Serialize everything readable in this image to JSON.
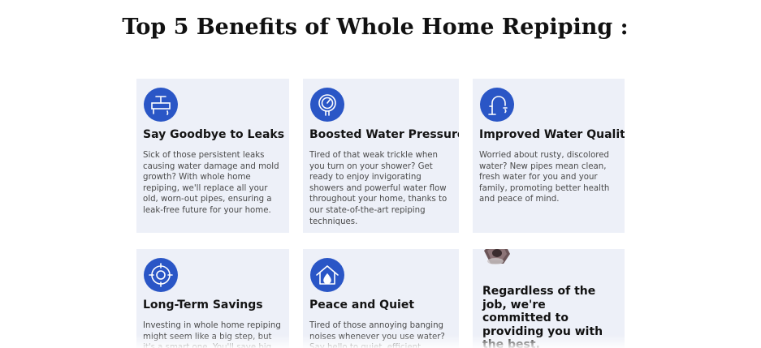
{
  "page": {
    "title": "Top 5 Benefits of Whole Home Repiping :"
  },
  "colors": {
    "card_background": "#edf0f8",
    "icon_blue": "#2a56c6",
    "title_text": "#111111",
    "body_text": "#4a4a4a"
  },
  "cards": [
    {
      "icon": "pipe-valve-icon",
      "title": "Say Goodbye to Leaks",
      "text": "Sick of those persistent leaks causing water damage and mold growth? With whole home repiping, we'll replace all your old, worn-out pipes, ensuring a leak-free future for your home."
    },
    {
      "icon": "pressure-gauge-icon",
      "title": "Boosted Water Pressure",
      "text": "Tired of that weak trickle when you turn on your shower? Get ready to enjoy invigorating showers and powerful water flow throughout your home, thanks to our state-of-the-art repiping techniques."
    },
    {
      "icon": "faucet-icon",
      "title": "Improved Water Quality",
      "text": "Worried about rusty, discolored water? New pipes mean clean, fresh water for you and your family, promoting better health and peace of mind."
    },
    {
      "icon": "savings-target-icon",
      "title": "Long-Term Savings",
      "text": "Investing in whole home repiping might seem like a big step, but it's a smart one. You'll save big on"
    },
    {
      "icon": "house-water-drop-icon",
      "title": "Peace and Quiet",
      "text": "Tired of those annoying banging noises whenever you use water? Say hello to quiet, efficient"
    }
  ],
  "promo": {
    "icon": "hex-nut-icon",
    "text": "Regardless of the job, we're committed to providing you with the best."
  }
}
